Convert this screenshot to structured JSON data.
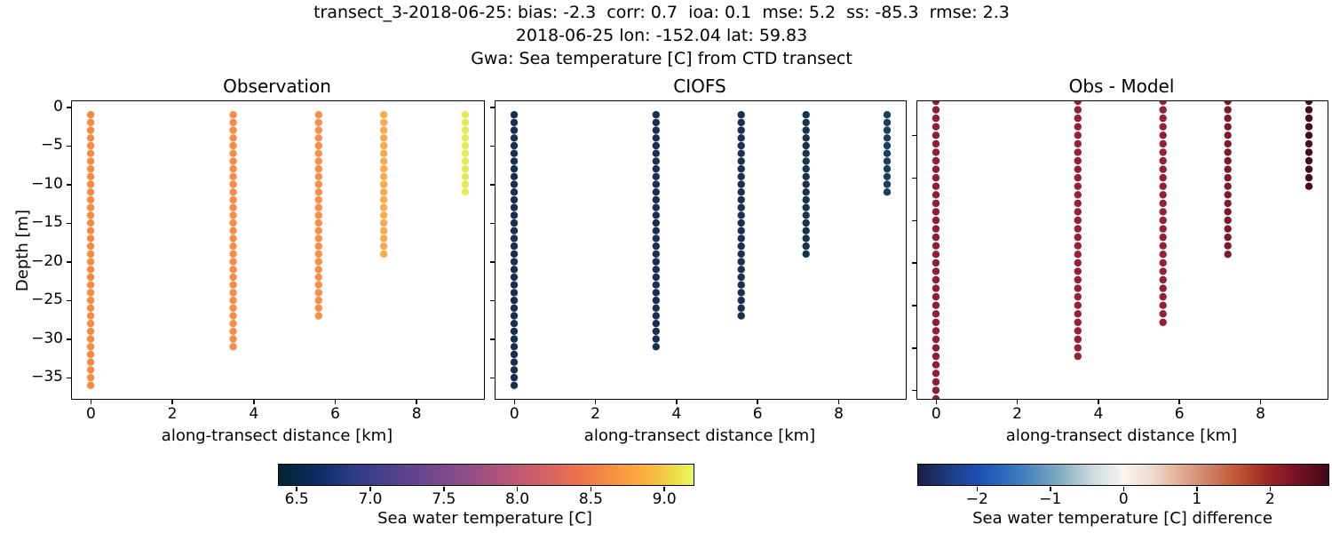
{
  "figure": {
    "suptitle_line1": "transect_3-2018-06-25: bias: -2.3  corr: 0.7  ioa: 0.1  mse: 5.2  ss: -85.3  rmse: 2.3",
    "suptitle_line2": "2018-06-25 lon: -152.04 lat: 59.83",
    "suptitle_line3": "Gwa: Sea temperature [C] from CTD transect",
    "stats": {
      "bias": -2.3,
      "corr": 0.7,
      "ioa": 0.1,
      "mse": 5.2,
      "ss": -85.3,
      "rmse": 2.3
    },
    "date": "2018-06-25",
    "lon": -152.04,
    "lat": 59.83,
    "background": "#ffffff"
  },
  "chart_data": {
    "type": "scatter",
    "description": "Vertical CTD profile scatter columns of sea water temperature vs depth along a transect",
    "panels": [
      {
        "title": "Observation",
        "xlabel": "along-transect distance [km]",
        "ylabel": "Depth [m]",
        "show_y_tick_labels": true,
        "xlim": [
          -0.46,
          9.66
        ],
        "ylim": [
          0.75,
          -37.75
        ],
        "x_ticks": [
          {
            "value": 0,
            "label": "0"
          },
          {
            "value": 2,
            "label": "2"
          },
          {
            "value": 4,
            "label": "4"
          },
          {
            "value": 6,
            "label": "6"
          },
          {
            "value": 8,
            "label": "8"
          }
        ],
        "y_ticks": [
          {
            "value": 0,
            "label": "0"
          },
          {
            "value": -5,
            "label": "−5"
          },
          {
            "value": -10,
            "label": "−10"
          },
          {
            "value": -15,
            "label": "−15"
          },
          {
            "value": -20,
            "label": "−20"
          },
          {
            "value": -25,
            "label": "−25"
          },
          {
            "value": -30,
            "label": "−30"
          },
          {
            "value": -35,
            "label": "−35"
          }
        ],
        "columns": [
          {
            "x_km": 0.0,
            "depth_from_m": -1,
            "depth_to_m": -36,
            "step_m": 1,
            "n_points": 36,
            "color": "#F68A42",
            "approx_temperature_C": 8.5
          },
          {
            "x_km": 3.5,
            "depth_from_m": -1,
            "depth_to_m": -31,
            "step_m": 1,
            "n_points": 31,
            "color": "#F68C45",
            "approx_temperature_C": 8.5
          },
          {
            "x_km": 5.6,
            "depth_from_m": -1,
            "depth_to_m": -27,
            "step_m": 1,
            "n_points": 27,
            "color": "#F78F48",
            "approx_temperature_C": 8.55
          },
          {
            "x_km": 7.2,
            "depth_from_m": -1,
            "depth_to_m": -19,
            "step_m": 1,
            "n_points": 19,
            "color": "#FAA94E",
            "approx_temperature_C": 8.8
          },
          {
            "x_km": 9.2,
            "depth_from_m": -1,
            "depth_to_m": -11,
            "step_m": 1,
            "n_points": 11,
            "color": "#E7EC55",
            "approx_temperature_C": 9.15
          }
        ]
      },
      {
        "title": "CIOFS",
        "xlabel": "along-transect distance [km]",
        "ylabel": "",
        "show_y_tick_labels": false,
        "xlim": [
          -0.46,
          9.66
        ],
        "ylim": [
          0.75,
          -37.75
        ],
        "x_ticks": [
          {
            "value": 0,
            "label": "0"
          },
          {
            "value": 2,
            "label": "2"
          },
          {
            "value": 4,
            "label": "4"
          },
          {
            "value": 6,
            "label": "6"
          },
          {
            "value": 8,
            "label": "8"
          }
        ],
        "y_ticks": [
          {
            "value": 0,
            "label": "0"
          },
          {
            "value": -5,
            "label": "−5"
          },
          {
            "value": -10,
            "label": "−10"
          },
          {
            "value": -15,
            "label": "−15"
          },
          {
            "value": -20,
            "label": "−20"
          },
          {
            "value": -25,
            "label": "−25"
          },
          {
            "value": -30,
            "label": "−30"
          },
          {
            "value": -35,
            "label": "−35"
          }
        ],
        "columns": [
          {
            "x_km": 0.0,
            "depth_from_m": -1,
            "depth_to_m": -36,
            "step_m": 1,
            "n_points": 36,
            "color": "#143250",
            "approx_temperature_C": 6.5
          },
          {
            "x_km": 3.5,
            "depth_from_m": -1,
            "depth_to_m": -31,
            "step_m": 1,
            "n_points": 31,
            "color": "#143250",
            "approx_temperature_C": 6.5
          },
          {
            "x_km": 5.6,
            "depth_from_m": -1,
            "depth_to_m": -27,
            "step_m": 1,
            "n_points": 27,
            "color": "#15334F",
            "approx_temperature_C": 6.5
          },
          {
            "x_km": 7.2,
            "depth_from_m": -1,
            "depth_to_m": -19,
            "step_m": 1,
            "n_points": 19,
            "color": "#16344E",
            "approx_temperature_C": 6.5
          },
          {
            "x_km": 9.2,
            "depth_from_m": -1,
            "depth_to_m": -11,
            "step_m": 1,
            "n_points": 11,
            "color": "#1A3E60",
            "approx_temperature_C": 6.6
          }
        ]
      },
      {
        "title": "Obs - Model",
        "xlabel": "along-transect distance [km]",
        "ylabel": "",
        "show_y_tick_labels": false,
        "xlim": [
          -0.46,
          9.66
        ],
        "ylim": [
          -1,
          -36
        ],
        "x_ticks": [
          {
            "value": 0,
            "label": "0"
          },
          {
            "value": 2,
            "label": "2"
          },
          {
            "value": 4,
            "label": "4"
          },
          {
            "value": 6,
            "label": "6"
          },
          {
            "value": 8,
            "label": "8"
          }
        ],
        "y_ticks": [
          {
            "value": -5,
            "label": "−5"
          },
          {
            "value": -10,
            "label": "−10"
          },
          {
            "value": -15,
            "label": "−15"
          },
          {
            "value": -20,
            "label": "−20"
          },
          {
            "value": -25,
            "label": "−25"
          },
          {
            "value": -30,
            "label": "−30"
          },
          {
            "value": -35,
            "label": "−35"
          }
        ],
        "columns": [
          {
            "x_km": 0.0,
            "depth_from_m": -1,
            "depth_to_m": -36,
            "step_m": 1,
            "n_points": 36,
            "color": "#8F1D33",
            "approx_difference_C": 2.0
          },
          {
            "x_km": 3.5,
            "depth_from_m": -1,
            "depth_to_m": -31,
            "step_m": 1,
            "n_points": 31,
            "color": "#962035",
            "approx_difference_C": 2.0
          },
          {
            "x_km": 5.6,
            "depth_from_m": -1,
            "depth_to_m": -27,
            "step_m": 1,
            "n_points": 27,
            "color": "#951F34",
            "approx_difference_C": 2.05
          },
          {
            "x_km": 7.2,
            "depth_from_m": -1,
            "depth_to_m": -19,
            "step_m": 1,
            "n_points": 19,
            "color": "#7C1A2C",
            "approx_difference_C": 2.3
          },
          {
            "x_km": 9.2,
            "depth_from_m": -1,
            "depth_to_m": -11,
            "step_m": 1,
            "n_points": 11,
            "color": "#470D1A",
            "approx_difference_C": 2.7
          }
        ]
      }
    ],
    "colorbars": [
      {
        "label": "Sea water temperature [C]",
        "colormap": "thermal",
        "vmin": 6.38,
        "vmax": 9.2,
        "ticks": [
          {
            "value": 6.5,
            "label": "6.5"
          },
          {
            "value": 7.0,
            "label": "7.0"
          },
          {
            "value": 7.5,
            "label": "7.5"
          },
          {
            "value": 8.0,
            "label": "8.0"
          },
          {
            "value": 8.5,
            "label": "8.5"
          },
          {
            "value": 9.0,
            "label": "9.0"
          }
        ],
        "gradient": [
          {
            "pos": 0,
            "color": "#042333"
          },
          {
            "pos": 9,
            "color": "#0A2D5E"
          },
          {
            "pos": 18,
            "color": "#2D3A8C"
          },
          {
            "pos": 27,
            "color": "#4E4189"
          },
          {
            "pos": 36,
            "color": "#6F478D"
          },
          {
            "pos": 45,
            "color": "#8F4C87"
          },
          {
            "pos": 54,
            "color": "#B2547A"
          },
          {
            "pos": 63,
            "color": "#D25F66"
          },
          {
            "pos": 72,
            "color": "#EB724E"
          },
          {
            "pos": 80,
            "color": "#F68E41"
          },
          {
            "pos": 89,
            "color": "#FBB33F"
          },
          {
            "pos": 95,
            "color": "#F0D74A"
          },
          {
            "pos": 100,
            "color": "#E8FA5B"
          }
        ]
      },
      {
        "label": "Sea water temperature [C] difference",
        "colormap": "balance",
        "vmin": -2.8,
        "vmax": 2.8,
        "ticks": [
          {
            "value": -2,
            "label": "−2"
          },
          {
            "value": -1,
            "label": "−1"
          },
          {
            "value": 0,
            "label": "0"
          },
          {
            "value": 1,
            "label": "1"
          },
          {
            "value": 2,
            "label": "2"
          }
        ],
        "gradient": [
          {
            "pos": 0,
            "color": "#1C1E45"
          },
          {
            "pos": 8,
            "color": "#1E3D87"
          },
          {
            "pos": 15,
            "color": "#1D50B8"
          },
          {
            "pos": 25,
            "color": "#3E7CC0"
          },
          {
            "pos": 35,
            "color": "#85AFC3"
          },
          {
            "pos": 42,
            "color": "#C9D8DC"
          },
          {
            "pos": 50,
            "color": "#F9F5F2"
          },
          {
            "pos": 57,
            "color": "#EFD9CB"
          },
          {
            "pos": 67,
            "color": "#D99A7E"
          },
          {
            "pos": 77,
            "color": "#C25B3B"
          },
          {
            "pos": 84,
            "color": "#A52C24"
          },
          {
            "pos": 91,
            "color": "#801327"
          },
          {
            "pos": 100,
            "color": "#40091A"
          }
        ]
      }
    ]
  }
}
